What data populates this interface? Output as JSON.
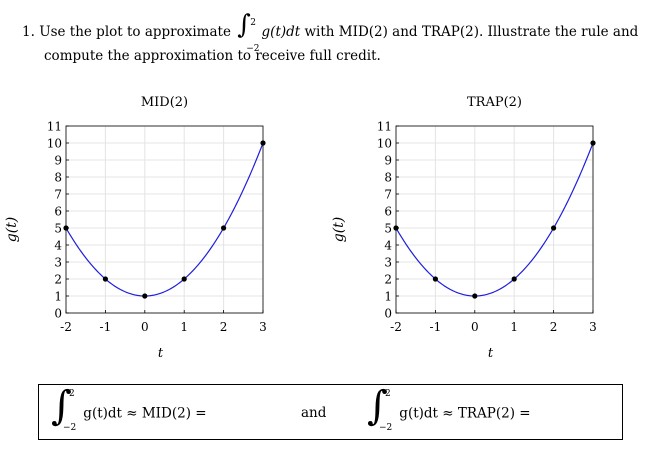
{
  "problem": {
    "number": "1.",
    "text_before": "Use the plot to approximate",
    "integral": {
      "upper": "2",
      "lower": "−2",
      "integrand": "g(t)dt"
    },
    "text_after": "with MID(2) and TRAP(2). Illustrate the rule and",
    "line2": "compute the approximation to receive full credit."
  },
  "chart_data": [
    {
      "type": "line",
      "title": "MID(2)",
      "xlabel": "t",
      "ylabel": "g(t)",
      "xlim": [
        -2,
        3
      ],
      "ylim": [
        0,
        11
      ],
      "xticks": [
        "-2",
        "-1",
        "0",
        "1",
        "2",
        "3"
      ],
      "yticks": [
        "0",
        "1",
        "2",
        "3",
        "4",
        "5",
        "6",
        "7",
        "8",
        "9",
        "10",
        "11"
      ],
      "curve": {
        "x": [
          -2,
          -1.5,
          -1,
          -0.5,
          0,
          0.5,
          1,
          1.5,
          2,
          2.5,
          3
        ],
        "y": [
          5,
          3.3,
          2,
          1.25,
          1,
          1.25,
          2,
          3.3,
          5,
          7.25,
          10
        ]
      },
      "points": {
        "x": [
          -2,
          -1,
          0,
          1,
          2,
          3
        ],
        "y": [
          5,
          2,
          1,
          2,
          5,
          10
        ]
      }
    },
    {
      "type": "line",
      "title": "TRAP(2)",
      "xlabel": "t",
      "ylabel": "g(t)",
      "xlim": [
        -2,
        3
      ],
      "ylim": [
        0,
        11
      ],
      "xticks": [
        "-2",
        "-1",
        "0",
        "1",
        "2",
        "3"
      ],
      "yticks": [
        "0",
        "1",
        "2",
        "3",
        "4",
        "5",
        "6",
        "7",
        "8",
        "9",
        "10",
        "11"
      ],
      "curve": {
        "x": [
          -2,
          -1.5,
          -1,
          -0.5,
          0,
          0.5,
          1,
          1.5,
          2,
          2.5,
          3
        ],
        "y": [
          5,
          3.3,
          2,
          1.25,
          1,
          1.25,
          2,
          3.3,
          5,
          7.25,
          10
        ]
      },
      "points": {
        "x": [
          -2,
          -1,
          0,
          1,
          2,
          3
        ],
        "y": [
          5,
          2,
          1,
          2,
          5,
          10
        ]
      }
    }
  ],
  "answers": {
    "upper": "2",
    "lower": "−2",
    "mid": "g(t)dt ≈ MID(2) =",
    "and": "and",
    "trap": "g(t)dt ≈ TRAP(2) ="
  },
  "colors": {
    "curve": "#1f1fdc",
    "point": "#000000"
  }
}
